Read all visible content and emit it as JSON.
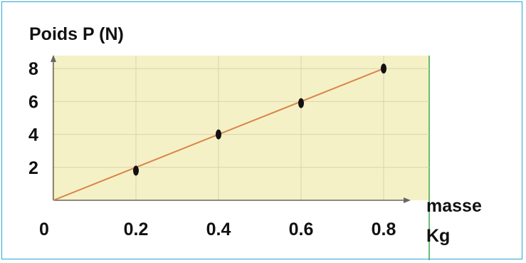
{
  "chart_data": {
    "type": "scatter",
    "ylabel": "Poids  P (N)",
    "xlabel_line1": "masse",
    "xlabel_line2": "Kg",
    "origin_label": "0",
    "x_ticks": [
      {
        "value": 0.2,
        "label": "0.2"
      },
      {
        "value": 0.4,
        "label": "0.4"
      },
      {
        "value": 0.6,
        "label": "0.6"
      },
      {
        "value": 0.8,
        "label": "0.8"
      }
    ],
    "y_ticks": [
      {
        "value": 2,
        "label": "2"
      },
      {
        "value": 4,
        "label": "4"
      },
      {
        "value": 6,
        "label": "6"
      },
      {
        "value": 8,
        "label": "8"
      }
    ],
    "points": [
      {
        "x": 0.2,
        "y": 1.8
      },
      {
        "x": 0.4,
        "y": 4.0
      },
      {
        "x": 0.6,
        "y": 5.9
      },
      {
        "x": 0.8,
        "y": 8.0
      }
    ],
    "fit_line": {
      "from": [
        0,
        0
      ],
      "to": [
        0.8,
        8
      ]
    },
    "xlim": [
      0,
      0.9
    ],
    "ylim": [
      0,
      9
    ],
    "grid": true,
    "colors": {
      "plot_bg": "#f5f1c6",
      "grid": "#d9d3b2",
      "line": "#d9844a",
      "point": "#111111",
      "axis": "#666666",
      "frame_border": "#2aa7d6",
      "right_edge": "#3aa64a"
    }
  }
}
